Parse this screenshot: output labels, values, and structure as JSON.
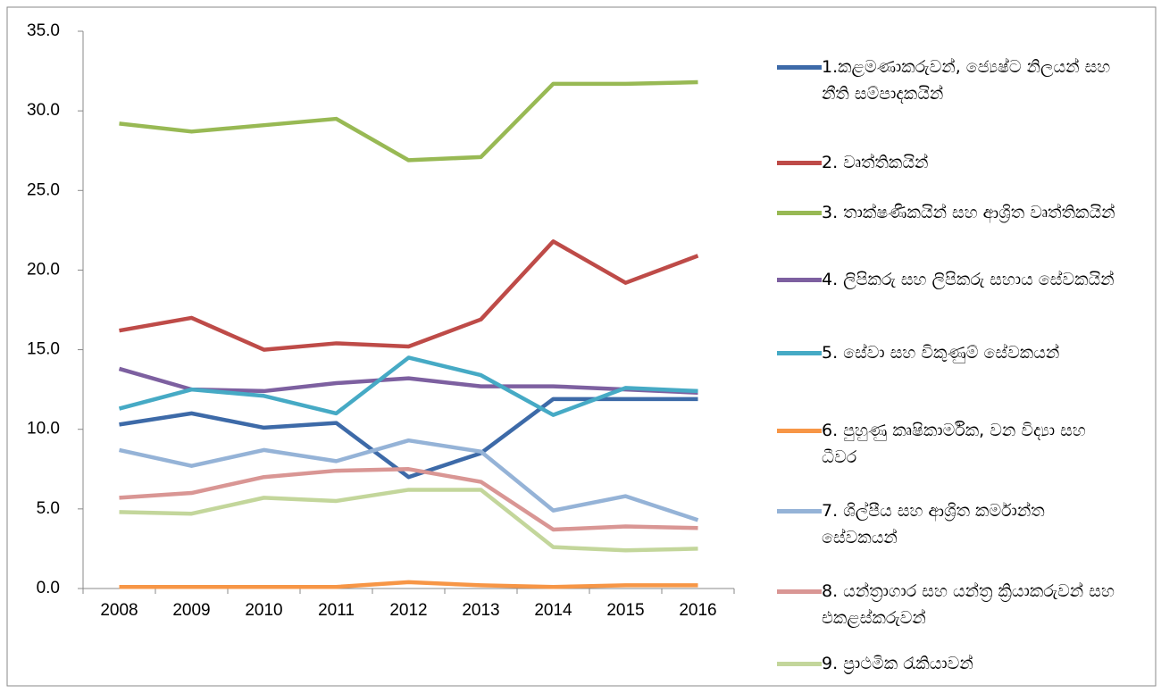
{
  "chart_data": {
    "type": "line",
    "categories": [
      "2008",
      "2009",
      "2010",
      "2011",
      "2012",
      "2013",
      "2014",
      "2015",
      "2016"
    ],
    "series": [
      {
        "name": "1.කළමණාකරුවන්, ජ්‍යෙෂ්ට නිලයන් සහ නීති සම්පාදකයින්",
        "color": "#3d6aa8",
        "values": [
          10.3,
          11.0,
          10.1,
          10.4,
          7.0,
          8.5,
          11.9,
          11.9,
          11.9
        ]
      },
      {
        "name": "2.  වෘත්තිකයින්",
        "color": "#be4b48",
        "values": [
          16.2,
          17.0,
          15.0,
          15.4,
          15.2,
          16.9,
          21.8,
          19.2,
          20.9
        ]
      },
      {
        "name": "3. තාක්ෂණිකයින් සහ ආශ්‍රිත වෘත්තිකයින්",
        "color": "#98b954",
        "values": [
          29.2,
          28.7,
          29.1,
          29.5,
          26.9,
          27.1,
          31.7,
          31.7,
          31.8
        ]
      },
      {
        "name": "4. ලිපිකරු සහ ලිපිකරු සහාය සේවකයින්",
        "color": "#7d60a0",
        "values": [
          13.8,
          12.5,
          12.4,
          12.9,
          13.2,
          12.7,
          12.7,
          12.5,
          12.3
        ]
      },
      {
        "name": "5. සේවා සහ විකුණුම් සේවකයන්",
        "color": "#46aac5",
        "values": [
          11.3,
          12.5,
          12.1,
          11.0,
          14.5,
          13.4,
          10.9,
          12.6,
          12.4
        ]
      },
      {
        "name": "6. පුහුණු කෘෂිකාර්මික, වන විද්‍යා සහ ධීවර",
        "color": "#f79646",
        "values": [
          0.1,
          0.1,
          0.1,
          0.1,
          0.4,
          0.2,
          0.1,
          0.2,
          0.2
        ]
      },
      {
        "name": "7. ශිල්පීය සහ ආශ්‍රිත කර්මාන්ත සේවකයන්",
        "color": "#95b3d7",
        "values": [
          8.7,
          7.7,
          8.7,
          8.0,
          9.3,
          8.6,
          4.9,
          5.8,
          4.3
        ]
      },
      {
        "name": "8. යන්ත්‍රාගාර සහ යන්ත්‍ර ක්‍රියාකරුවන් සහ එකළස්කරුවන්",
        "color": "#d99694",
        "values": [
          5.7,
          6.0,
          7.0,
          7.4,
          7.5,
          6.7,
          3.7,
          3.9,
          3.8
        ]
      },
      {
        "name": "9. ප්‍රාථමික රැකියාවන්",
        "color": "#c3d69b",
        "values": [
          4.8,
          4.7,
          5.7,
          5.5,
          6.2,
          6.2,
          2.6,
          2.4,
          2.5
        ]
      }
    ],
    "ylim": [
      0,
      35
    ],
    "yticks": [
      {
        "value": 0,
        "label": "0.0"
      },
      {
        "value": 5,
        "label": "5.0"
      },
      {
        "value": 10,
        "label": "10.0"
      },
      {
        "value": 15,
        "label": "15.0"
      },
      {
        "value": 20,
        "label": "20.0"
      },
      {
        "value": 25,
        "label": "25.0"
      },
      {
        "value": 30,
        "label": "30.0"
      },
      {
        "value": 35,
        "label": "35.0"
      }
    ],
    "legend": "right"
  }
}
